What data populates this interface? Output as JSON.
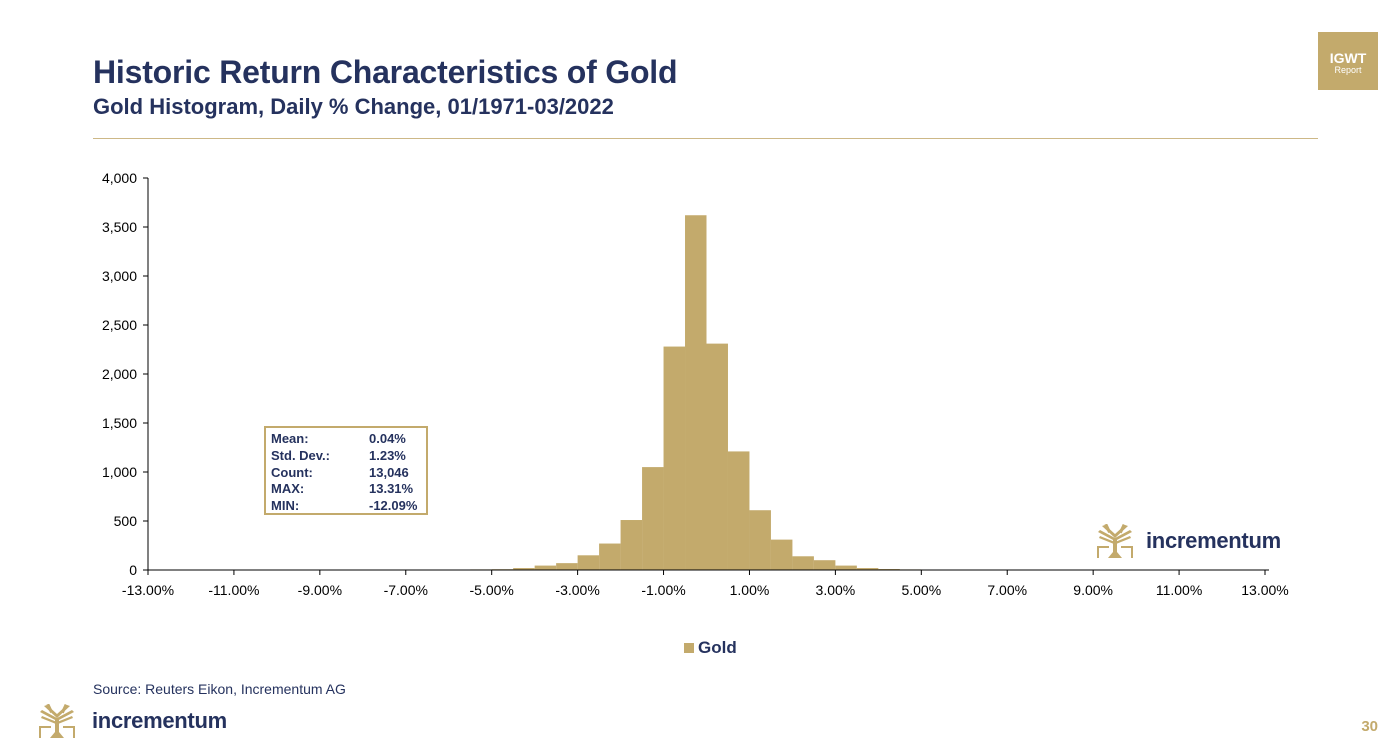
{
  "header": {
    "title": "Historic Return Characteristics of Gold",
    "subtitle": "Gold Histogram, Daily % Change, 01/1971-03/2022",
    "badge_main": "IGWT",
    "badge_sub": "Report"
  },
  "chart_data": {
    "type": "bar",
    "title": "Historic Return Characteristics of Gold",
    "subtitle": "Gold Histogram, Daily % Change, 01/1971-03/2022",
    "xlabel": "",
    "ylabel": "",
    "ylim": [
      0,
      4000
    ],
    "xlim": [
      -13,
      13
    ],
    "bin_width": 0.5,
    "x_tick_labels": [
      "-13.00%",
      "-11.00%",
      "-9.00%",
      "-7.00%",
      "-5.00%",
      "-3.00%",
      "-1.00%",
      "1.00%",
      "3.00%",
      "5.00%",
      "7.00%",
      "9.00%",
      "11.00%",
      "13.00%"
    ],
    "y_tick_labels": [
      "0",
      "500",
      "1,000",
      "1,500",
      "2,000",
      "2,500",
      "3,000",
      "3,500",
      "4,000"
    ],
    "y_ticks": [
      0,
      500,
      1000,
      1500,
      2000,
      2500,
      3000,
      3500,
      4000
    ],
    "series": [
      {
        "name": "Gold",
        "bins": [
          {
            "x": -5.75,
            "value": 4
          },
          {
            "x": -5.25,
            "value": 6
          },
          {
            "x": -4.75,
            "value": 8
          },
          {
            "x": -4.25,
            "value": 20
          },
          {
            "x": -3.75,
            "value": 45
          },
          {
            "x": -3.25,
            "value": 70
          },
          {
            "x": -2.75,
            "value": 150
          },
          {
            "x": -2.25,
            "value": 270
          },
          {
            "x": -1.75,
            "value": 510
          },
          {
            "x": -1.25,
            "value": 1050
          },
          {
            "x": -0.75,
            "value": 2280
          },
          {
            "x": -0.25,
            "value": 3620
          },
          {
            "x": 0.25,
            "value": 2310
          },
          {
            "x": 0.75,
            "value": 1210
          },
          {
            "x": 1.25,
            "value": 610
          },
          {
            "x": 1.75,
            "value": 310
          },
          {
            "x": 2.25,
            "value": 140
          },
          {
            "x": 2.75,
            "value": 100
          },
          {
            "x": 3.25,
            "value": 45
          },
          {
            "x": 3.75,
            "value": 20
          },
          {
            "x": 4.25,
            "value": 10
          },
          {
            "x": 4.75,
            "value": 6
          },
          {
            "x": 5.25,
            "value": 3
          }
        ]
      }
    ],
    "legend": {
      "position": "bottom",
      "entries": [
        "Gold"
      ]
    },
    "grid": false,
    "colors": {
      "bar": "#c3aa6c"
    }
  },
  "stats": [
    {
      "label": "Mean:",
      "value": "0.04%"
    },
    {
      "label": "Std. Dev.:",
      "value": "1.23%"
    },
    {
      "label": "Count:",
      "value": "13,046"
    },
    {
      "label": "MAX:",
      "value": "13.31%"
    },
    {
      "label": "MIN:",
      "value": "-12.09%"
    }
  ],
  "legend_label": "Gold",
  "footer": {
    "source": "Source: Reuters Eikon, Incrementum AG",
    "brand": "incrementum",
    "page_number": "30"
  },
  "colors": {
    "navy": "#25325e",
    "gold": "#c3aa6c"
  }
}
